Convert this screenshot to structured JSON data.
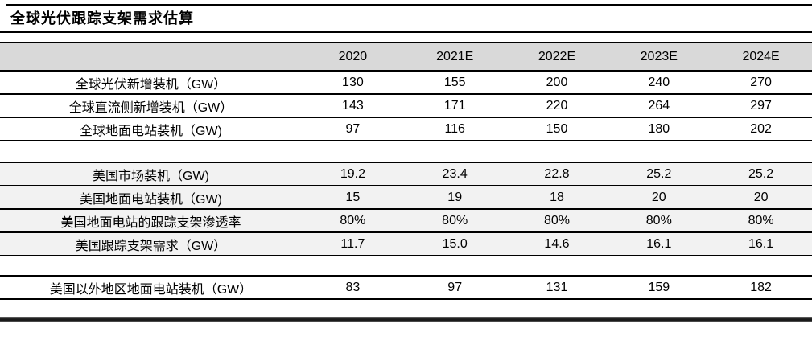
{
  "title": "全球光伏跟踪支架需求估算",
  "chart_data": {
    "type": "table",
    "title": "全球光伏跟踪支架需求估算",
    "columns": [
      "2020",
      "2021E",
      "2022E",
      "2023E",
      "2024E"
    ],
    "rows": [
      {
        "label": "全球光伏新增装机（GW）",
        "values": [
          "130",
          "155",
          "200",
          "240",
          "270"
        ]
      },
      {
        "label": "全球直流侧新增装机（GW）",
        "values": [
          "143",
          "171",
          "220",
          "264",
          "297"
        ]
      },
      {
        "label": "全球地面电站装机（GW)",
        "values": [
          "97",
          "116",
          "150",
          "180",
          "202"
        ]
      },
      {
        "label": "美国市场装机（GW)",
        "values": [
          "19.2",
          "23.4",
          "22.8",
          "25.2",
          "25.2"
        ]
      },
      {
        "label": "美国地面电站装机（GW)",
        "values": [
          "15",
          "19",
          "18",
          "20",
          "20"
        ]
      },
      {
        "label": "美国地面电站的跟踪支架渗透率",
        "values": [
          "80%",
          "80%",
          "80%",
          "80%",
          "80%"
        ]
      },
      {
        "label": "美国跟踪支架需求（GW）",
        "values": [
          "11.7",
          "15.0",
          "14.6",
          "16.1",
          "16.1"
        ]
      },
      {
        "label": "美国以外地区地面电站装机（GW）",
        "values": [
          "83",
          "97",
          "131",
          "159",
          "182"
        ]
      }
    ],
    "layout": {
      "grid": "horizontal-rules-only",
      "header_background": "#d9d9d9",
      "us_section_background": "#f2f2f2",
      "rule_color": "#000000"
    }
  }
}
